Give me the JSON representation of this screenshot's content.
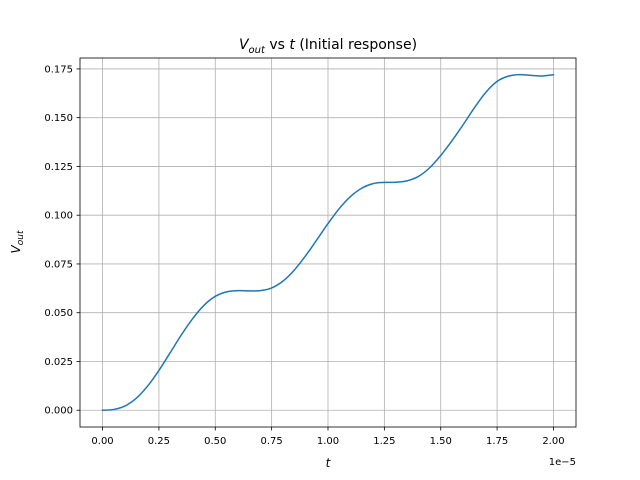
{
  "chart_data": {
    "type": "line",
    "title": {
      "main": "V",
      "main_sub": "out",
      "connector": " vs ",
      "var": "t",
      "suffix": " (Initial response)"
    },
    "xlabel": "t",
    "ylabel": {
      "main": "V",
      "sub": "out"
    },
    "x_offset_label": "1e−5",
    "x_scale": 1e-05,
    "xlim": [
      -1e-06,
      2.1e-05
    ],
    "ylim": [
      -0.0086,
      0.1806
    ],
    "xticks": [
      0,
      2.5e-06,
      5e-06,
      7.5e-06,
      1e-05,
      1.25e-05,
      1.5e-05,
      1.75e-05,
      2e-05
    ],
    "xtick_labels": [
      "0.00",
      "0.25",
      "0.50",
      "0.75",
      "1.00",
      "1.25",
      "1.50",
      "1.75",
      "2.00"
    ],
    "yticks": [
      0,
      0.025,
      0.05,
      0.075,
      0.1,
      0.125,
      0.15,
      0.175
    ],
    "ytick_labels": [
      "0.000",
      "0.025",
      "0.050",
      "0.075",
      "0.100",
      "0.125",
      "0.150",
      "0.175"
    ],
    "grid": true,
    "series": [
      {
        "color": "#1f77b4",
        "x": [
          0,
          5e-07,
          1e-06,
          1.5e-06,
          2e-06,
          2.5e-06,
          3e-06,
          3.5e-06,
          4e-06,
          4.5e-06,
          5e-06,
          5.5e-06,
          6e-06,
          6.5e-06,
          7e-06,
          7.5e-06,
          8e-06,
          8.5e-06,
          9e-06,
          9.5e-06,
          1e-05,
          1.05e-05,
          1.1e-05,
          1.15e-05,
          1.2e-05,
          1.25e-05,
          1.3e-05,
          1.35e-05,
          1.4e-05,
          1.45e-05,
          1.5e-05,
          1.55e-05,
          1.6e-05,
          1.65e-05,
          1.7e-05,
          1.75e-05,
          1.8e-05,
          1.85e-05,
          1.9e-05,
          1.95e-05,
          2e-05
        ],
        "values": [
          0,
          0.0004,
          0.0022,
          0.0062,
          0.0124,
          0.0204,
          0.0295,
          0.0387,
          0.047,
          0.0538,
          0.0584,
          0.0607,
          0.0613,
          0.0612,
          0.0613,
          0.0627,
          0.0662,
          0.0718,
          0.0791,
          0.0873,
          0.0957,
          0.1034,
          0.1096,
          0.1139,
          0.1162,
          0.1168,
          0.1169,
          0.1176,
          0.1198,
          0.1242,
          0.1306,
          0.1382,
          0.1465,
          0.1552,
          0.163,
          0.1686,
          0.1713,
          0.1721,
          0.1717,
          0.1714,
          0.172
        ]
      }
    ]
  }
}
